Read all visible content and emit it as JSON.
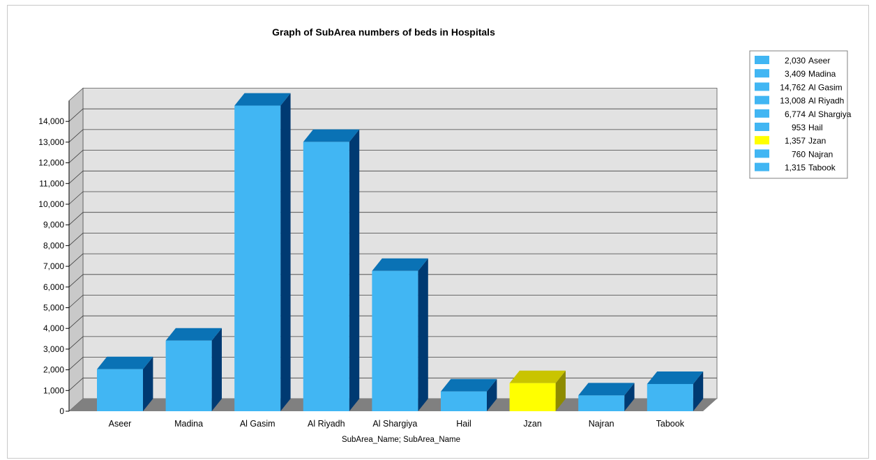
{
  "chart_data": {
    "type": "bar",
    "title": "Graph of SubArea numbers of beds in Hospitals",
    "xlabel": "SubArea_Name; SubArea_Name",
    "ylabel": "",
    "ylim": [
      0,
      15000
    ],
    "yticks": [
      "0",
      "1,000",
      "2,000",
      "3,000",
      "4,000",
      "5,000",
      "6,000",
      "7,000",
      "8,000",
      "9,000",
      "10,000",
      "11,000",
      "12,000",
      "13,000",
      "14,000"
    ],
    "grid": true,
    "legend_position": "right",
    "categories": [
      "Aseer",
      "Madina",
      "Al Gasim",
      "Al Riyadh",
      "Al Shargiya",
      "Hail",
      "Jzan",
      "Najran",
      "Tabook"
    ],
    "values": [
      2030,
      3409,
      14762,
      13008,
      6774,
      953,
      1357,
      760,
      1315
    ],
    "legend": [
      {
        "value": "2,030",
        "name": "Aseer"
      },
      {
        "value": "3,409",
        "name": "Madina"
      },
      {
        "value": "14,762",
        "name": "Al Gasim"
      },
      {
        "value": "13,008",
        "name": "Al Riyadh"
      },
      {
        "value": "6,774",
        "name": "Al Shargiya"
      },
      {
        "value": "953",
        "name": "Hail"
      },
      {
        "value": "1,357",
        "name": "Jzan"
      },
      {
        "value": "760",
        "name": "Najran"
      },
      {
        "value": "1,315",
        "name": "Tabook"
      }
    ],
    "colors": {
      "bar": "#41b6f3",
      "bar_top": "#0a72b5",
      "bar_side": "#003a72",
      "highlight": "#ffff00",
      "highlight_top": "#c9c400",
      "highlight_side": "#8e8b00",
      "wall": "#e2e2e2",
      "side_wall": "#c9c9c9",
      "floor": "#808080",
      "grid": "#404040"
    },
    "highlight_category": "Jzan"
  }
}
